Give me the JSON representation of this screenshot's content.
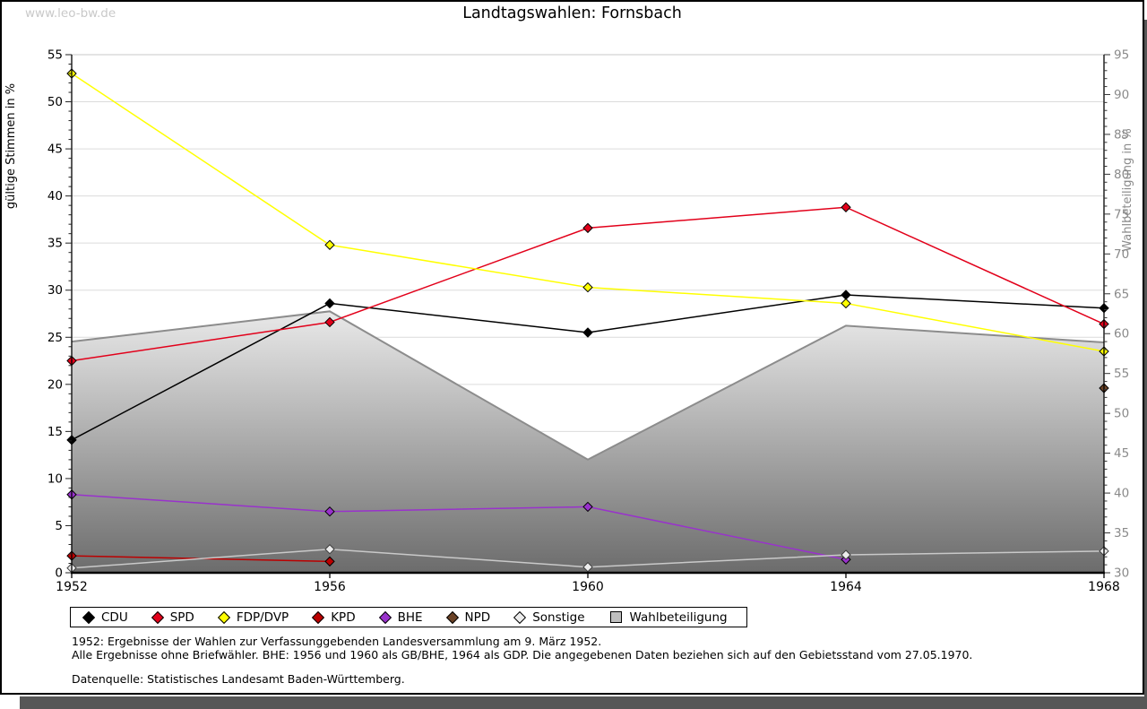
{
  "watermark": "www.leo-bw.de",
  "title": "Landtagswahlen: Fornsbach",
  "notes": {
    "line1": "1952: Ergebnisse der Wahlen zur Verfassunggebenden Landesversammlung am 9. März 1952.",
    "line2": "Alle Ergebnisse ohne Briefwähler. BHE: 1956 und 1960 als GB/BHE, 1964 als GDP. Die angegebenen Daten beziehen sich auf den Gebietsstand vom 27.05.1970.",
    "source": "Datenquelle: Statistisches Landesamt Baden-Württemberg."
  },
  "chart_data": {
    "type": "line",
    "title": "Landtagswahlen: Fornsbach",
    "categories": [
      1952,
      1956,
      1960,
      1964,
      1968
    ],
    "series": [
      {
        "name": "CDU",
        "color": "#000000",
        "values": [
          14.1,
          28.6,
          25.5,
          29.5,
          28.1
        ]
      },
      {
        "name": "SPD",
        "color": "#e2001a",
        "values": [
          22.5,
          26.6,
          36.6,
          38.8,
          26.4
        ]
      },
      {
        "name": "FDP/DVP",
        "color": "#ffff00",
        "values": [
          53.0,
          34.8,
          30.3,
          28.6,
          23.5
        ]
      },
      {
        "name": "KPD",
        "color": "#bb0000",
        "values": [
          1.8,
          1.2,
          null,
          null,
          null
        ]
      },
      {
        "name": "BHE",
        "color": "#9932cc",
        "values": [
          8.3,
          6.5,
          7.0,
          1.4,
          null
        ]
      },
      {
        "name": "NPD",
        "color": "#6b4226",
        "values": [
          null,
          null,
          null,
          null,
          19.6
        ]
      },
      {
        "name": "Sonstige",
        "color": "#c9c9c9",
        "marker_fill": "#ececec",
        "marker_edge": "#3d3d3d",
        "values": [
          0.5,
          2.5,
          0.6,
          1.9,
          2.3
        ]
      }
    ],
    "turnout": {
      "name": "Wahlbeteiligung",
      "axis": "right",
      "values": [
        59.0,
        62.8,
        44.2,
        61.0,
        58.9
      ],
      "border_color": "#8c8c8c",
      "fill_top": "#e9e9e9",
      "fill_bottom": "#6c6c6c"
    },
    "left_axis": {
      "label": "gültige Stimmen in %",
      "min": 0,
      "max": 55,
      "step": 5,
      "minor_step": 1,
      "color": "#000000"
    },
    "right_axis": {
      "label": "Wahlbeteiligung in %",
      "min": 30,
      "max": 95,
      "step": 5,
      "minor_step": 1,
      "color": "#8a8a8a"
    },
    "grid": true,
    "grid_color": "#dcdcdc",
    "legend_position": "bottom"
  }
}
